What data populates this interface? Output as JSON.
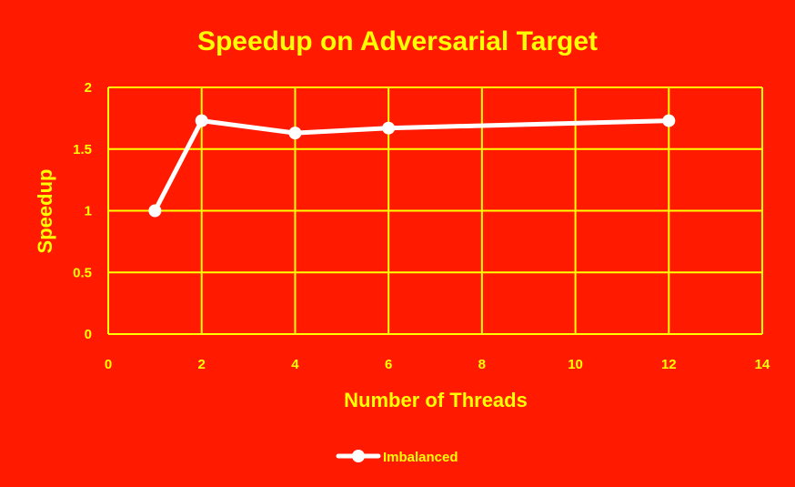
{
  "chart_data": {
    "type": "line",
    "title": "Speedup on Adversarial Target",
    "xlabel": "Number of Threads",
    "ylabel": "Speedup",
    "xlim": [
      0,
      14
    ],
    "ylim": [
      0,
      2
    ],
    "x_ticks": [
      0,
      2,
      4,
      6,
      8,
      10,
      12,
      14
    ],
    "y_ticks": [
      0,
      0.5,
      1,
      1.5,
      2
    ],
    "x_tick_labels": [
      "0",
      "2",
      "4",
      "6",
      "8",
      "10",
      "12",
      "14"
    ],
    "y_tick_labels": [
      "0",
      "0.5",
      "1",
      "1.5",
      "2"
    ],
    "grid": true,
    "legend_position": "bottom",
    "series": [
      {
        "name": "Imbalanced",
        "x": [
          1,
          2,
          4,
          6,
          12
        ],
        "y": [
          1.0,
          1.73,
          1.63,
          1.67,
          1.73
        ],
        "color": "#ffffff"
      }
    ],
    "colors": {
      "background": "#ff1a00",
      "text": "#ffff00",
      "grid": "#ffff00"
    }
  }
}
